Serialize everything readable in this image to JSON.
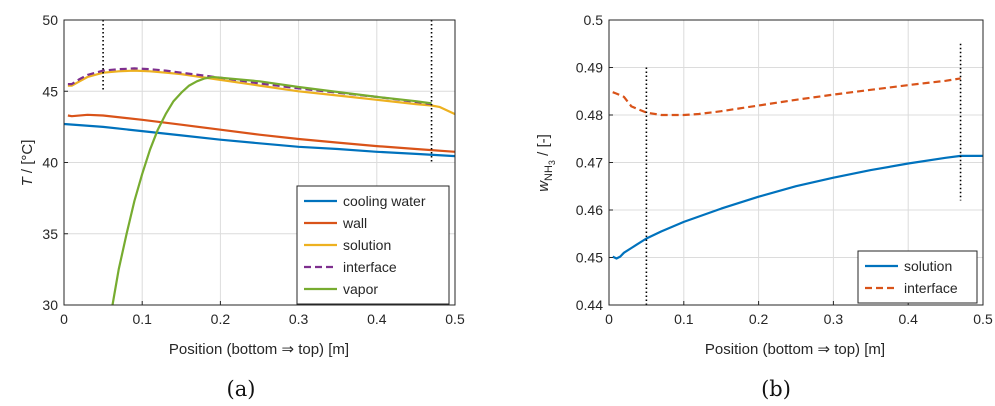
{
  "chart_data": [
    {
      "type": "line",
      "caption": "(a)",
      "xlabel": "Position (bottom ⇒ top) [m]",
      "ylabel_italic": "T",
      "ylabel_rest": " / [°C]",
      "xlim": [
        0,
        0.5
      ],
      "ylim": [
        30,
        50
      ],
      "xticks": [
        0,
        0.1,
        0.2,
        0.3,
        0.4,
        0.5
      ],
      "yticks": [
        30,
        35,
        40,
        45,
        50
      ],
      "xtick_labels": [
        "0",
        "0.1",
        "0.2",
        "0.3",
        "0.4",
        "0.5"
      ],
      "ytick_labels": [
        "30",
        "35",
        "40",
        "45",
        "50"
      ],
      "grid": true,
      "legend_position": "bottom-right",
      "vlines": [
        0.05,
        0.47
      ],
      "vline_ranges": [
        [
          45,
          50
        ],
        [
          40,
          50
        ]
      ],
      "series": [
        {
          "name": "cooling water",
          "color": "#0072BD",
          "dash": false,
          "x": [
            0,
            0.05,
            0.1,
            0.15,
            0.2,
            0.25,
            0.3,
            0.35,
            0.4,
            0.45,
            0.5
          ],
          "y": [
            42.7,
            42.5,
            42.2,
            41.9,
            41.6,
            41.35,
            41.1,
            40.95,
            40.75,
            40.6,
            40.45
          ]
        },
        {
          "name": "wall",
          "color": "#D95319",
          "dash": false,
          "x": [
            0.005,
            0.01,
            0.03,
            0.05,
            0.1,
            0.15,
            0.2,
            0.25,
            0.3,
            0.35,
            0.4,
            0.45,
            0.5
          ],
          "y": [
            43.3,
            43.25,
            43.35,
            43.3,
            43.0,
            42.65,
            42.3,
            41.95,
            41.65,
            41.4,
            41.15,
            40.95,
            40.75
          ]
        },
        {
          "name": "solution",
          "color": "#EDB120",
          "dash": false,
          "x": [
            0.005,
            0.01,
            0.02,
            0.03,
            0.05,
            0.07,
            0.09,
            0.11,
            0.13,
            0.15,
            0.2,
            0.25,
            0.3,
            0.35,
            0.4,
            0.45,
            0.47,
            0.48,
            0.5
          ],
          "y": [
            45.4,
            45.4,
            45.7,
            46.0,
            46.3,
            46.4,
            46.45,
            46.4,
            46.3,
            46.2,
            45.8,
            45.4,
            45.0,
            44.7,
            44.4,
            44.1,
            44.0,
            43.9,
            43.4
          ]
        },
        {
          "name": "interface",
          "color": "#7E2F8E",
          "dash": true,
          "x": [
            0.005,
            0.01,
            0.02,
            0.03,
            0.05,
            0.07,
            0.09,
            0.11,
            0.13,
            0.15,
            0.2,
            0.25,
            0.3,
            0.35,
            0.4,
            0.45,
            0.47
          ],
          "y": [
            45.5,
            45.5,
            45.85,
            46.15,
            46.45,
            46.55,
            46.6,
            46.55,
            46.45,
            46.3,
            45.95,
            45.55,
            45.2,
            44.9,
            44.6,
            44.25,
            44.1
          ]
        },
        {
          "name": "vapor",
          "color": "#77AC30",
          "dash": false,
          "x": [
            0.062,
            0.07,
            0.08,
            0.09,
            0.1,
            0.11,
            0.12,
            0.13,
            0.14,
            0.15,
            0.16,
            0.17,
            0.18,
            0.19,
            0.2,
            0.25,
            0.3,
            0.35,
            0.4,
            0.45,
            0.47
          ],
          "y": [
            30.0,
            32.5,
            35.0,
            37.3,
            39.2,
            40.9,
            42.3,
            43.4,
            44.3,
            44.9,
            45.4,
            45.7,
            45.9,
            46.0,
            45.95,
            45.7,
            45.3,
            44.95,
            44.6,
            44.3,
            44.15
          ]
        }
      ]
    },
    {
      "type": "line",
      "caption": "(b)",
      "xlabel": "Position (bottom ⇒ top) [m]",
      "ylabel_w": "w",
      "ylabel_sub": "NH",
      "ylabel_subsub": "3",
      "ylabel_rest": " / [-]",
      "xlim": [
        0,
        0.5
      ],
      "ylim": [
        0.44,
        0.5
      ],
      "xticks": [
        0,
        0.1,
        0.2,
        0.3,
        0.4,
        0.5
      ],
      "yticks": [
        0.44,
        0.45,
        0.46,
        0.47,
        0.48,
        0.49,
        0.5
      ],
      "xtick_labels": [
        "0",
        "0.1",
        "0.2",
        "0.3",
        "0.4",
        "0.5"
      ],
      "ytick_labels": [
        "0.44",
        "0.45",
        "0.46",
        "0.47",
        "0.48",
        "0.49",
        "0.5"
      ],
      "grid": true,
      "legend_position": "bottom-right",
      "vlines": [
        0.05,
        0.47
      ],
      "vline_ranges": [
        [
          0.44,
          0.49
        ],
        [
          0.462,
          0.495
        ]
      ],
      "series": [
        {
          "name": "solution",
          "color": "#0072BD",
          "dash": false,
          "x": [
            0.005,
            0.01,
            0.015,
            0.02,
            0.03,
            0.05,
            0.07,
            0.1,
            0.15,
            0.2,
            0.25,
            0.3,
            0.35,
            0.4,
            0.45,
            0.47,
            0.5
          ],
          "y": [
            0.4502,
            0.4498,
            0.4502,
            0.451,
            0.452,
            0.454,
            0.4555,
            0.4575,
            0.4603,
            0.4628,
            0.465,
            0.4668,
            0.4684,
            0.4698,
            0.471,
            0.4714,
            0.4714
          ]
        },
        {
          "name": "interface",
          "color": "#D95319",
          "dash": true,
          "x": [
            0.005,
            0.01,
            0.02,
            0.03,
            0.05,
            0.07,
            0.1,
            0.12,
            0.15,
            0.2,
            0.25,
            0.3,
            0.35,
            0.4,
            0.45,
            0.47
          ],
          "y": [
            0.4848,
            0.4845,
            0.4838,
            0.4818,
            0.4805,
            0.48,
            0.48,
            0.4802,
            0.4808,
            0.482,
            0.4832,
            0.4843,
            0.4853,
            0.4863,
            0.4872,
            0.4877
          ]
        }
      ]
    }
  ]
}
